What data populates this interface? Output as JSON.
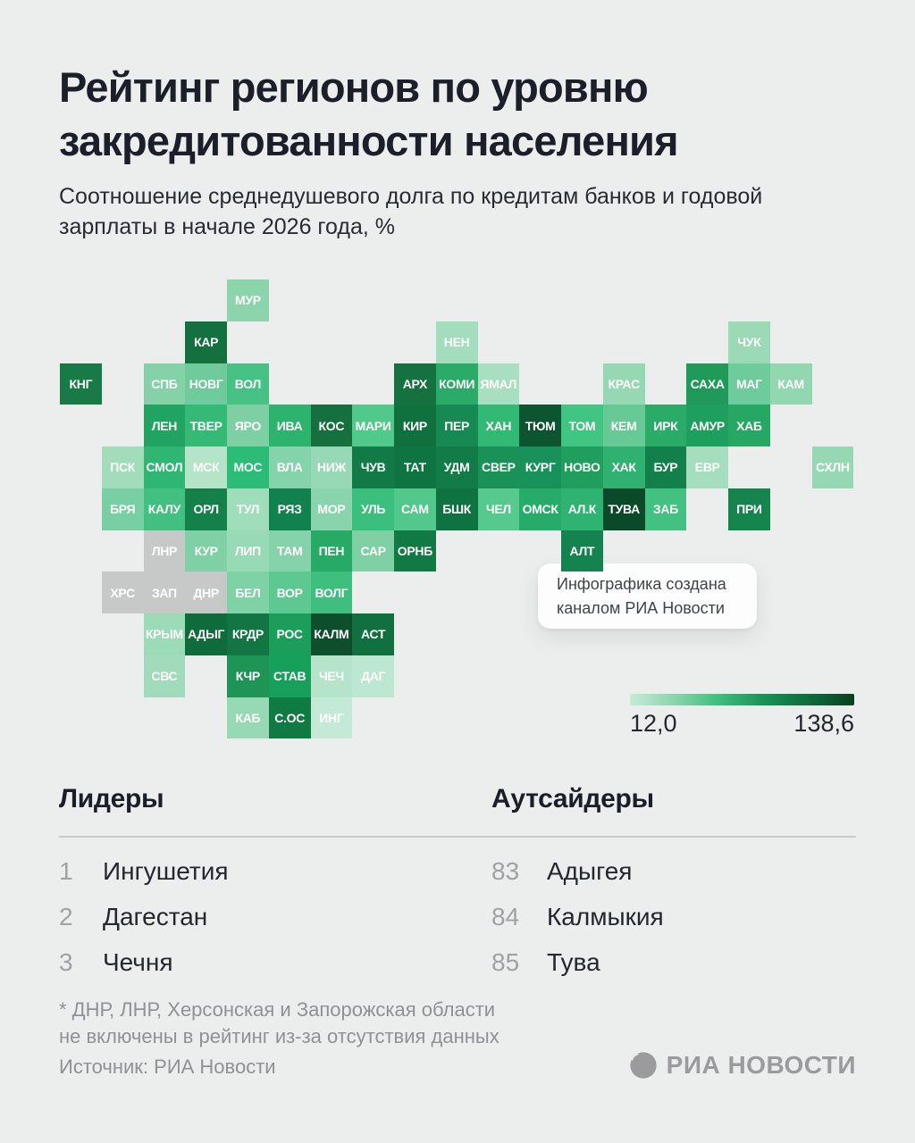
{
  "header": {
    "title_line1": "Рейтинг регионов по уровню",
    "title_line2": "закредитованности населения",
    "subtitle_line1": "Соотношение среднедушевого долга по кредитам банков и годовой",
    "subtitle_line2": "зарплаты в начале 2026 года, %"
  },
  "tooltip": {
    "line1": "Инфографика создана",
    "line2": "каналом РИА Новости"
  },
  "legend": {
    "min_label": "12,0",
    "max_label": "138,6",
    "gradient": [
      "#C6EBD8",
      "#8AD4AD",
      "#3CBE7C",
      "#1A9156",
      "#0E6B3C",
      "#09401F"
    ]
  },
  "leaders": {
    "heading": "Лидеры",
    "items": [
      {
        "rank": "1",
        "name": "Ингушетия"
      },
      {
        "rank": "2",
        "name": "Дагестан"
      },
      {
        "rank": "3",
        "name": "Чечня"
      }
    ]
  },
  "outsiders": {
    "heading": "Аутсайдеры",
    "items": [
      {
        "rank": "83",
        "name": "Адыгея"
      },
      {
        "rank": "84",
        "name": "Калмыкия"
      },
      {
        "rank": "85",
        "name": "Тува"
      }
    ]
  },
  "footnote_line1": "* ДНР, ЛНР, Херсонская и Запорожская области",
  "footnote_line2": "не включены в рейтинг из-за отсутствия данных",
  "source": "Источник: РИА Новости",
  "logo_text": "РИА НОВОСТИ",
  "colors": {
    "background": "#ECEEED",
    "no_data": "#C7C9C8",
    "scale_min": "#C6EBD8",
    "scale_max": "#09401F"
  },
  "chart_data": {
    "type": "heatmap",
    "title": "Рейтинг регионов по уровню закредитованности населения",
    "subtitle": "Соотношение среднедушевого долга по кредитам банков и годовой зарплаты в начале 2026 года, %",
    "scale": {
      "min": 12.0,
      "max": 138.6,
      "unit": "%",
      "min_label": "12,0",
      "max_label": "138,6"
    },
    "no_data_regions": [
      "ЛНР",
      "ХРС",
      "ЗАП",
      "ДНР"
    ],
    "leaders": [
      {
        "rank": 1,
        "region": "Ингушетия"
      },
      {
        "rank": 2,
        "region": "Дагестан"
      },
      {
        "rank": 3,
        "region": "Чечня"
      }
    ],
    "outsiders": [
      {
        "rank": 83,
        "region": "Адыгея"
      },
      {
        "rank": 84,
        "region": "Калмыкия"
      },
      {
        "rank": 85,
        "region": "Тува"
      }
    ],
    "cells": [
      {
        "label": "МУР",
        "row": 0,
        "col": 4,
        "color": "#8CD5AC"
      },
      {
        "label": "КАР",
        "row": 1,
        "col": 3,
        "color": "#14713F"
      },
      {
        "label": "НЕН",
        "row": 1,
        "col": 9,
        "color": "#A3DDBD"
      },
      {
        "label": "ЧУК",
        "row": 1,
        "col": 16,
        "color": "#9CDAB7"
      },
      {
        "label": "КНГ",
        "row": 2,
        "col": 0,
        "color": "#187A47"
      },
      {
        "label": "СПБ",
        "row": 2,
        "col": 2,
        "color": "#85D2A8"
      },
      {
        "label": "НОВГ",
        "row": 2,
        "col": 3,
        "color": "#6FCB9C"
      },
      {
        "label": "ВОЛ",
        "row": 2,
        "col": 4,
        "color": "#46C384"
      },
      {
        "label": "АРХ",
        "row": 2,
        "col": 8,
        "color": "#15713F"
      },
      {
        "label": "КОМИ",
        "row": 2,
        "col": 9,
        "color": "#2AAB67"
      },
      {
        "label": "ЯМАЛ",
        "row": 2,
        "col": 10,
        "color": "#A8DFC0"
      },
      {
        "label": "КРАС",
        "row": 2,
        "col": 13,
        "color": "#95D8B3"
      },
      {
        "label": "САХА",
        "row": 2,
        "col": 15,
        "color": "#1F9A59"
      },
      {
        "label": "МАГ",
        "row": 2,
        "col": 16,
        "color": "#6ECB9B"
      },
      {
        "label": "КАМ",
        "row": 2,
        "col": 17,
        "color": "#93D7B1"
      },
      {
        "label": "ЛЕН",
        "row": 3,
        "col": 2,
        "color": "#21A361"
      },
      {
        "label": "ТВЕР",
        "row": 3,
        "col": 3,
        "color": "#35BA75"
      },
      {
        "label": "ЯРО",
        "row": 3,
        "col": 4,
        "color": "#7ED0A4"
      },
      {
        "label": "ИВА",
        "row": 3,
        "col": 5,
        "color": "#2DB36E"
      },
      {
        "label": "КОС",
        "row": 3,
        "col": 6,
        "color": "#156F3F"
      },
      {
        "label": "МАРИ",
        "row": 3,
        "col": 7,
        "color": "#51C98A"
      },
      {
        "label": "КИР",
        "row": 3,
        "col": 8,
        "color": "#10713F"
      },
      {
        "label": "ПЕР",
        "row": 3,
        "col": 9,
        "color": "#168A52"
      },
      {
        "label": "ХАН",
        "row": 3,
        "col": 10,
        "color": "#32BA75"
      },
      {
        "label": "ТЮМ",
        "row": 3,
        "col": 11,
        "color": "#0C5530"
      },
      {
        "label": "ТОМ",
        "row": 3,
        "col": 12,
        "color": "#41C582"
      },
      {
        "label": "КЕМ",
        "row": 3,
        "col": 13,
        "color": "#67C996"
      },
      {
        "label": "ИРК",
        "row": 3,
        "col": 14,
        "color": "#2BAB68"
      },
      {
        "label": "АМУР",
        "row": 3,
        "col": 15,
        "color": "#1DA05E"
      },
      {
        "label": "ХАБ",
        "row": 3,
        "col": 16,
        "color": "#26A763"
      },
      {
        "label": "ПСК",
        "row": 4,
        "col": 1,
        "color": "#A2DCBB"
      },
      {
        "label": "СМОЛ",
        "row": 4,
        "col": 2,
        "color": "#2FB672"
      },
      {
        "label": "МСК",
        "row": 4,
        "col": 3,
        "color": "#B5E4C9"
      },
      {
        "label": "МОС",
        "row": 4,
        "col": 4,
        "color": "#2BBC76"
      },
      {
        "label": "ВЛА",
        "row": 4,
        "col": 5,
        "color": "#85D3AA"
      },
      {
        "label": "НИЖ",
        "row": 4,
        "col": 6,
        "color": "#97D9B6"
      },
      {
        "label": "ЧУВ",
        "row": 4,
        "col": 7,
        "color": "#127A47"
      },
      {
        "label": "ТАТ",
        "row": 4,
        "col": 8,
        "color": "#0E7442"
      },
      {
        "label": "УДМ",
        "row": 4,
        "col": 9,
        "color": "#127C49"
      },
      {
        "label": "СВЕР",
        "row": 4,
        "col": 10,
        "color": "#1A9156"
      },
      {
        "label": "КУРГ",
        "row": 4,
        "col": 11,
        "color": "#18915A"
      },
      {
        "label": "НОВО",
        "row": 4,
        "col": 12,
        "color": "#1F9E5C"
      },
      {
        "label": "ХАК",
        "row": 4,
        "col": 13,
        "color": "#2FB26F"
      },
      {
        "label": "БУР",
        "row": 4,
        "col": 14,
        "color": "#137F4B"
      },
      {
        "label": "ЕВР",
        "row": 4,
        "col": 15,
        "color": "#A5DDBF"
      },
      {
        "label": "СХЛН",
        "row": 4,
        "col": 18,
        "color": "#97D8B4"
      },
      {
        "label": "БРЯ",
        "row": 5,
        "col": 1,
        "color": "#78CFA3"
      },
      {
        "label": "КАЛУ",
        "row": 5,
        "col": 2,
        "color": "#41C07F"
      },
      {
        "label": "ОРЛ",
        "row": 5,
        "col": 3,
        "color": "#15814A"
      },
      {
        "label": "ТУЛ",
        "row": 5,
        "col": 4,
        "color": "#9FDDBB"
      },
      {
        "label": "РЯЗ",
        "row": 5,
        "col": 5,
        "color": "#128150"
      },
      {
        "label": "МОР",
        "row": 5,
        "col": 6,
        "color": "#8AD4AD"
      },
      {
        "label": "УЛЬ",
        "row": 5,
        "col": 7,
        "color": "#3BBF7D"
      },
      {
        "label": "САМ",
        "row": 5,
        "col": 8,
        "color": "#52C88A"
      },
      {
        "label": "БШК",
        "row": 5,
        "col": 9,
        "color": "#0E7340"
      },
      {
        "label": "ЧЕЛ",
        "row": 5,
        "col": 10,
        "color": "#55CA8C"
      },
      {
        "label": "ОМСК",
        "row": 5,
        "col": 11,
        "color": "#27AB68"
      },
      {
        "label": "АЛ.К",
        "row": 5,
        "col": 12,
        "color": "#2EB370"
      },
      {
        "label": "ТУВА",
        "row": 5,
        "col": 13,
        "color": "#0A4A2A"
      },
      {
        "label": "ЗАБ",
        "row": 5,
        "col": 14,
        "color": "#43C181"
      },
      {
        "label": "ПРИ",
        "row": 5,
        "col": 16,
        "color": "#15854D"
      },
      {
        "label": "ЛНР",
        "row": 6,
        "col": 2,
        "color": "#C7C9C8"
      },
      {
        "label": "КУР",
        "row": 6,
        "col": 3,
        "color": "#7FD0A4"
      },
      {
        "label": "ЛИП",
        "row": 6,
        "col": 4,
        "color": "#98DAB6"
      },
      {
        "label": "ТАМ",
        "row": 6,
        "col": 5,
        "color": "#85D3AB"
      },
      {
        "label": "ПЕН",
        "row": 6,
        "col": 6,
        "color": "#27AA66"
      },
      {
        "label": "САР",
        "row": 6,
        "col": 7,
        "color": "#7FD0A5"
      },
      {
        "label": "ОРНБ",
        "row": 6,
        "col": 8,
        "color": "#107944"
      },
      {
        "label": "АЛТ",
        "row": 6,
        "col": 12,
        "color": "#148350"
      },
      {
        "label": "ХРС",
        "row": 7,
        "col": 1,
        "color": "#C7C9C8"
      },
      {
        "label": "ЗАП",
        "row": 7,
        "col": 2,
        "color": "#C7C9C8"
      },
      {
        "label": "ДНР",
        "row": 7,
        "col": 3,
        "color": "#C7C9C8"
      },
      {
        "label": "БЕЛ",
        "row": 7,
        "col": 4,
        "color": "#7FD1A6"
      },
      {
        "label": "ВОР",
        "row": 7,
        "col": 5,
        "color": "#5EC892"
      },
      {
        "label": "ВОЛГ",
        "row": 7,
        "col": 6,
        "color": "#3FBF7E"
      },
      {
        "label": "КРЫМ",
        "row": 8,
        "col": 2,
        "color": "#9CDBB8"
      },
      {
        "label": "АДЫГ",
        "row": 8,
        "col": 3,
        "color": "#0E6B3C"
      },
      {
        "label": "КРДР",
        "row": 8,
        "col": 4,
        "color": "#117544"
      },
      {
        "label": "РОС",
        "row": 8,
        "col": 5,
        "color": "#1B9E5A"
      },
      {
        "label": "КАЛМ",
        "row": 8,
        "col": 6,
        "color": "#0D4F2D"
      },
      {
        "label": "АСТ",
        "row": 8,
        "col": 7,
        "color": "#107040"
      },
      {
        "label": "СВС",
        "row": 9,
        "col": 2,
        "color": "#A0DCBB"
      },
      {
        "label": "КЧР",
        "row": 9,
        "col": 4,
        "color": "#1E9455"
      },
      {
        "label": "СТАВ",
        "row": 9,
        "col": 5,
        "color": "#17A05A"
      },
      {
        "label": "ЧЕЧ",
        "row": 9,
        "col": 6,
        "color": "#B5E4CA"
      },
      {
        "label": "ДАГ",
        "row": 9,
        "col": 7,
        "color": "#BCE7D0"
      },
      {
        "label": "КАБ",
        "row": 10,
        "col": 4,
        "color": "#98D9B5"
      },
      {
        "label": "С.ОС",
        "row": 10,
        "col": 5,
        "color": "#0F7A42"
      },
      {
        "label": "ИНГ",
        "row": 10,
        "col": 6,
        "color": "#C3EAD5"
      }
    ]
  }
}
